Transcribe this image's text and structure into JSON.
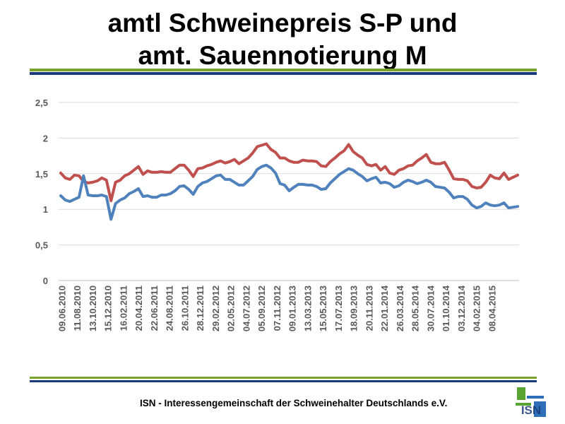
{
  "slide": {
    "title_line1": "amtl Schweinepreis S-P und",
    "title_line2": "amt. Sauennotierung M",
    "footer": "ISN - Interessengemeinschaft der Schweinehalter Deutschlands e.V.",
    "logo_text": "ISN",
    "colors": {
      "rule_green": "#7aa32c",
      "rule_blue": "#1b3a7a",
      "logo_green": "#5aa532",
      "logo_blue": "#2f6fb7"
    }
  },
  "chart_data": {
    "type": "line",
    "title": "",
    "xlabel": "",
    "ylabel": "",
    "ylim": [
      0,
      2.5
    ],
    "yticks": [
      "0",
      "0,5",
      "1",
      "1,5",
      "2",
      "2,5"
    ],
    "grid": true,
    "legend": "none",
    "x_tick_labels": [
      "09.06.2010",
      "11.08.2010",
      "13.10.2010",
      "15.12.2010",
      "16.02.2011",
      "20.04.2011",
      "22.06.2011",
      "24.08.2011",
      "26.10.2011",
      "28.12.2011",
      "29.02.2012",
      "02.05.2012",
      "04.07.2012",
      "05.09.2012",
      "07.11.2012",
      "09.01.2013",
      "13.03.2013",
      "15.05.2013",
      "17.07.2013",
      "18.09.2013",
      "20.11.2013",
      "22.01.2014",
      "26.03.2014",
      "28.05.2014",
      "30.07.2014",
      "01.10.2014",
      "03.12.2014",
      "04.02.2015",
      "08.04.2015"
    ],
    "series": [
      {
        "color": "#c0504d",
        "values": [
          1.51,
          1.44,
          1.42,
          1.48,
          1.47,
          1.39,
          1.37,
          1.38,
          1.4,
          1.44,
          1.41,
          1.12,
          1.38,
          1.41,
          1.47,
          1.5,
          1.55,
          1.6,
          1.49,
          1.54,
          1.52,
          1.52,
          1.53,
          1.52,
          1.52,
          1.57,
          1.62,
          1.62,
          1.55,
          1.46,
          1.57,
          1.58,
          1.61,
          1.63,
          1.66,
          1.68,
          1.65,
          1.67,
          1.7,
          1.64,
          1.68,
          1.72,
          1.79,
          1.88,
          1.9,
          1.92,
          1.84,
          1.8,
          1.72,
          1.72,
          1.68,
          1.66,
          1.66,
          1.69,
          1.68,
          1.68,
          1.67,
          1.61,
          1.6,
          1.67,
          1.72,
          1.78,
          1.82,
          1.91,
          1.81,
          1.76,
          1.72,
          1.63,
          1.61,
          1.63,
          1.55,
          1.6,
          1.51,
          1.49,
          1.55,
          1.57,
          1.61,
          1.62,
          1.68,
          1.72,
          1.77,
          1.66,
          1.64,
          1.64,
          1.66,
          1.55,
          1.43,
          1.42,
          1.42,
          1.4,
          1.32,
          1.3,
          1.31,
          1.38,
          1.48,
          1.44,
          1.43,
          1.51,
          1.42,
          1.45,
          1.48
        ]
      },
      {
        "color": "#4f81bd",
        "values": [
          1.19,
          1.13,
          1.11,
          1.14,
          1.17,
          1.47,
          1.2,
          1.19,
          1.19,
          1.2,
          1.18,
          0.86,
          1.08,
          1.13,
          1.16,
          1.22,
          1.25,
          1.29,
          1.18,
          1.19,
          1.17,
          1.17,
          1.2,
          1.2,
          1.22,
          1.26,
          1.32,
          1.33,
          1.28,
          1.21,
          1.32,
          1.37,
          1.39,
          1.43,
          1.47,
          1.48,
          1.42,
          1.42,
          1.38,
          1.34,
          1.34,
          1.4,
          1.46,
          1.56,
          1.6,
          1.62,
          1.58,
          1.51,
          1.36,
          1.34,
          1.26,
          1.31,
          1.35,
          1.35,
          1.34,
          1.34,
          1.32,
          1.28,
          1.29,
          1.37,
          1.43,
          1.49,
          1.53,
          1.57,
          1.55,
          1.5,
          1.46,
          1.4,
          1.43,
          1.45,
          1.37,
          1.38,
          1.36,
          1.31,
          1.33,
          1.38,
          1.41,
          1.39,
          1.36,
          1.38,
          1.41,
          1.38,
          1.32,
          1.31,
          1.3,
          1.24,
          1.16,
          1.18,
          1.18,
          1.14,
          1.06,
          1.02,
          1.04,
          1.09,
          1.06,
          1.05,
          1.06,
          1.09,
          1.02,
          1.03,
          1.04
        ]
      }
    ]
  }
}
